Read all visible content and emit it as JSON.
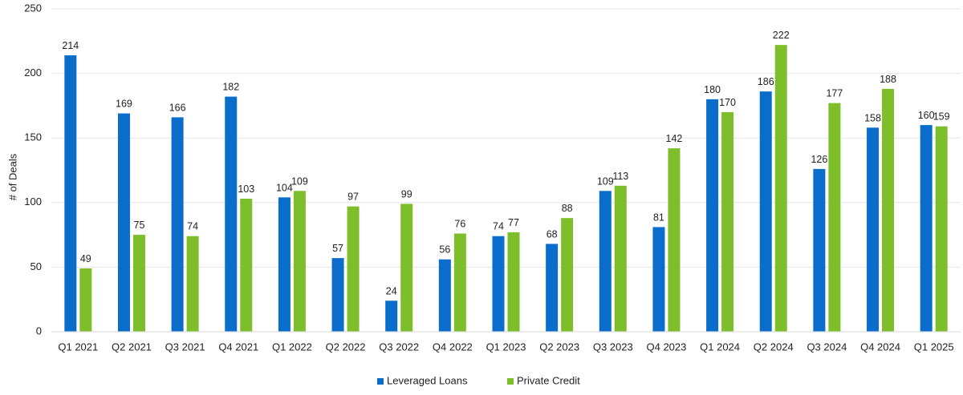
{
  "chart_data": {
    "type": "bar",
    "categories": [
      "Q1 2021",
      "Q2 2021",
      "Q3 2021",
      "Q4 2021",
      "Q1 2022",
      "Q2 2022",
      "Q3 2022",
      "Q4 2022",
      "Q1 2023",
      "Q2 2023",
      "Q3 2023",
      "Q4 2023",
      "Q1 2024",
      "Q2 2024",
      "Q3 2024",
      "Q4 2024",
      "Q1 2025"
    ],
    "series": [
      {
        "name": "Leveraged Loans",
        "color": "#0a6ccb",
        "values": [
          214,
          169,
          166,
          182,
          104,
          57,
          24,
          56,
          74,
          68,
          109,
          81,
          180,
          186,
          126,
          158,
          160
        ]
      },
      {
        "name": "Private Credit",
        "color": "#7dbe2a",
        "values": [
          49,
          75,
          74,
          103,
          109,
          97,
          99,
          76,
          77,
          88,
          113,
          142,
          170,
          222,
          177,
          188,
          159
        ]
      }
    ],
    "ylabel": "# of Deals",
    "xlabel": "",
    "ylim": [
      0,
      250
    ],
    "yticks": [
      0,
      50,
      100,
      150,
      200,
      250
    ],
    "grid": true,
    "legend": "bottom-center"
  }
}
